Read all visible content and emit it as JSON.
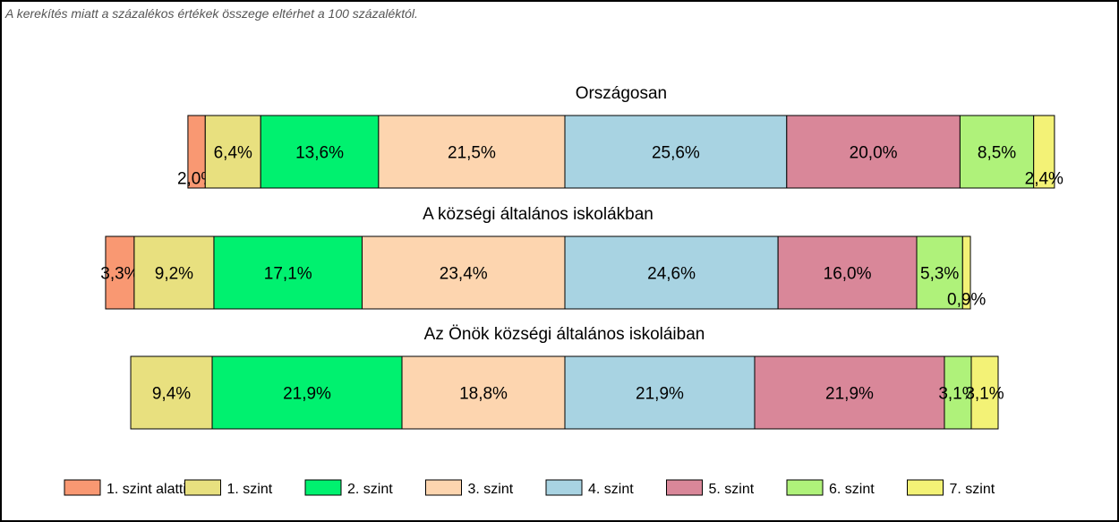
{
  "note": "A kerekítés miatt a  százalékos értékek összege eltérhet a 100 százaléktól.",
  "chart_data": {
    "type": "bar",
    "orientation": "horizontal",
    "stacked": true,
    "categories": [
      "Országosan",
      "A községi általános iskolákban",
      "Az Önök községi általános iskoláiban"
    ],
    "series": [
      {
        "name": "1. szint alatti",
        "color": "#F99872",
        "values": [
          2.0,
          3.3,
          0
        ],
        "labels": [
          "2,0%",
          "3,3%",
          ""
        ]
      },
      {
        "name": "1. szint",
        "color": "#E8E07F",
        "values": [
          6.4,
          9.2,
          9.4
        ],
        "labels": [
          "6,4%",
          "9,2%",
          "9,4%"
        ]
      },
      {
        "name": "2. szint",
        "color": "#00F16F",
        "values": [
          13.6,
          17.1,
          21.9
        ],
        "labels": [
          "13,6%",
          "17,1%",
          "21,9%"
        ]
      },
      {
        "name": "3. szint",
        "color": "#FDD5AF",
        "values": [
          21.5,
          23.4,
          18.8
        ],
        "labels": [
          "21,5%",
          "23,4%",
          "18,8%"
        ]
      },
      {
        "name": "4. szint",
        "color": "#A8D3E2",
        "values": [
          25.6,
          24.6,
          21.9
        ],
        "labels": [
          "25,6%",
          "24,6%",
          "21,9%"
        ]
      },
      {
        "name": "5. szint",
        "color": "#D98799",
        "values": [
          20.0,
          16.0,
          21.9
        ],
        "labels": [
          "20,0%",
          "16,0%",
          "21,9%"
        ]
      },
      {
        "name": "6. szint",
        "color": "#AFF27A",
        "values": [
          8.5,
          5.3,
          3.1
        ],
        "labels": [
          "8,5%",
          "5,3%",
          "3,1%"
        ]
      },
      {
        "name": "7. szint",
        "color": "#F3F276",
        "values": [
          2.4,
          0.9,
          3.1
        ],
        "labels": [
          "2,4%",
          "0,9%",
          "3,1%"
        ]
      }
    ],
    "legend_position": "bottom",
    "grid": false
  }
}
